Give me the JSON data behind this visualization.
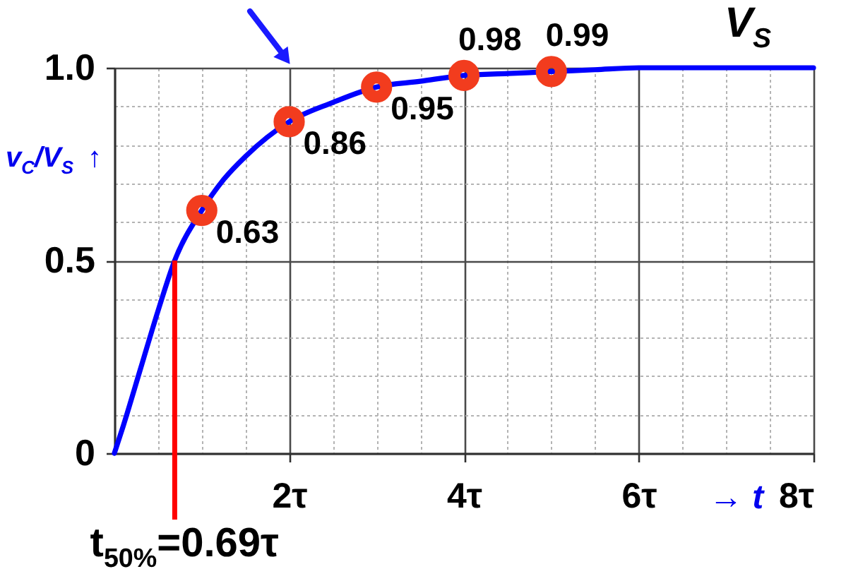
{
  "chart_data": {
    "type": "line",
    "annotations": [
      "V$_{S}$"
    ],
    "xlabel": "→ t",
    "ylabel": "v$_{C}$/V$_{S}$ ↑",
    "xlim": [
      0,
      8
    ],
    "ylim": [
      0,
      1
    ],
    "xticks": [
      {
        "value": 0.5,
        "label": null
      },
      {
        "value": 1,
        "label": null
      },
      {
        "value": 1.5,
        "label": null
      },
      {
        "value": 2,
        "label": "2τ"
      },
      {
        "value": 2.5,
        "label": null
      },
      {
        "value": 3,
        "label": null
      },
      {
        "value": 3.5,
        "label": null
      },
      {
        "value": 4,
        "label": "4τ"
      },
      {
        "value": 4.5,
        "label": null
      },
      {
        "value": 5,
        "label": null
      },
      {
        "value": 5.5,
        "label": null
      },
      {
        "value": 6,
        "label": "6τ"
      },
      {
        "value": 6.5,
        "label": null
      },
      {
        "value": 7,
        "label": null
      },
      {
        "value": 7.5,
        "label": null
      },
      {
        "value": 8,
        "label": "8τ"
      }
    ],
    "yticks": [
      0,
      {
        "value": 0.1,
        "label": null
      },
      {
        "value": 0.2,
        "label": null
      },
      {
        "value": 0.3,
        "label": null
      },
      {
        "value": 0.4,
        "label": null
      },
      0.5,
      {
        "value": 0.6,
        "label": null
      },
      {
        "value": 0.7,
        "label": null
      },
      {
        "value": 0.8,
        "label": null
      },
      {
        "value": 0.9,
        "label": null
      },
      {
        "value": 1,
        "label": "1.0"
      }
    ],
    "grid": true,
    "series": [
      {
        "color": "#0000ff",
        "x": [
          0,
          0.1,
          0.3,
          0.5,
          0.69,
          1,
          1.25,
          1.5,
          2,
          2.5,
          3,
          3.5,
          4,
          4.5,
          5,
          5.5,
          6,
          7,
          8
        ],
        "values": [
          0,
          0.07,
          0.22,
          0.37,
          0.5,
          0.63,
          0.71,
          0.77,
          0.86,
          0.91,
          0.95,
          0.965,
          0.98,
          0.985,
          0.99,
          0.995,
          1,
          1,
          1
        ]
      },
      {
        "type": "scatter",
        "color": "#f23c1e",
        "marker": "circle",
        "x": [
          1,
          2,
          3,
          4,
          5
        ],
        "values": [
          0.63,
          0.86,
          0.95,
          0.98,
          0.99
        ],
        "value_labels": [
          "0.63",
          "0.86",
          "0.95",
          "0.98",
          "0.99"
        ]
      }
    ],
    "ref_lines": [
      {
        "axis": "x",
        "value": 0.69,
        "label": "t$_{50%}$=0.69τ",
        "color": "#ff0000"
      }
    ]
  }
}
